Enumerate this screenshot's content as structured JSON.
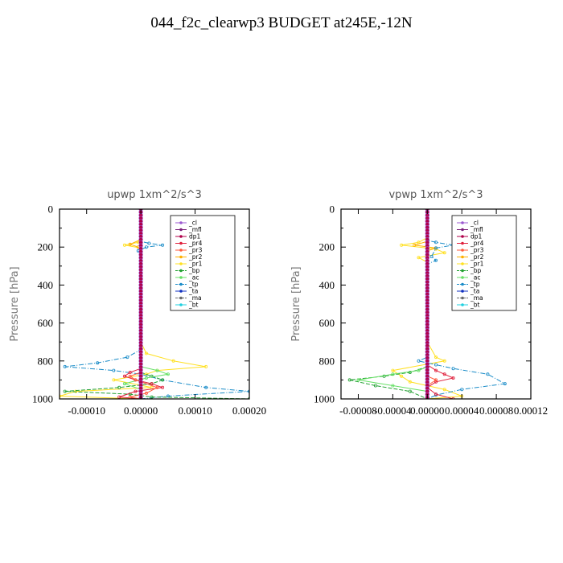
{
  "title": "044_f2c_clearwp3  BUDGET at245E,-12N",
  "colors": {
    "_cl": "#9b59d0",
    "_mfl": "#7a1f7a",
    "dp1": "#b0004a",
    "_pr4": "#e0203c",
    "_pr3": "#ff5a3c",
    "_pr2": "#ffb000",
    "_pr1": "#ffe020",
    "_bp": "#22a032",
    "_ac": "#66e066",
    "_tp": "#1a8cc8",
    "_ta": "#1030c0",
    "_ma": "#6a6a6a",
    "_bt": "#20d0e0"
  },
  "legend_entries": [
    "_cl",
    "_mfl",
    "dp1",
    "_pr4",
    "_pr3",
    "_pr2",
    "_pr1",
    "_bp",
    "_ac",
    "_tp",
    "_ta",
    "_ma",
    "_bt"
  ],
  "chart_data": [
    {
      "type": "line",
      "title": "upwp   1xm^2/s^3",
      "ylabel": "Pressure [hPa]",
      "xlim": [
        -0.00015,
        0.0002
      ],
      "ylim": [
        1000,
        0
      ],
      "xticks": [
        -0.0001,
        0.0,
        0.0001,
        0.0002
      ],
      "xtick_labels": [
        "-0.00010",
        "0.00000",
        "0.00010",
        "0.00020"
      ],
      "yticks": [
        0,
        200,
        400,
        600,
        800,
        1000
      ],
      "legend_position": "top-right",
      "series": [
        {
          "name": "_pr1",
          "points": [
            [
              0,
              0
            ],
            [
              0,
              150
            ],
            [
              -5e-06,
              175
            ],
            [
              -3e-05,
              190
            ],
            [
              0,
              205
            ],
            [
              0,
              700
            ],
            [
              1e-05,
              760
            ],
            [
              6e-05,
              800
            ],
            [
              0.00012,
              830
            ],
            [
              3e-05,
              850
            ],
            [
              1e-05,
              870
            ],
            [
              -5e-05,
              900
            ],
            [
              2e-05,
              940
            ],
            [
              -0.00012,
              960
            ],
            [
              -0.00015,
              985
            ],
            [
              0,
              1000
            ]
          ]
        },
        {
          "name": "_pr2",
          "points": [
            [
              0,
              0
            ],
            [
              0,
              160
            ],
            [
              -2e-05,
              185
            ],
            [
              -5e-06,
              200
            ],
            [
              0,
              220
            ],
            [
              0,
              1000
            ]
          ]
        },
        {
          "name": "_tp",
          "points": [
            [
              0,
              0
            ],
            [
              0,
              170
            ],
            [
              1.5e-05,
              180
            ],
            [
              4e-05,
              190
            ],
            [
              1e-05,
              200
            ],
            [
              -5e-06,
              220
            ],
            [
              0,
              240
            ],
            [
              0,
              740
            ],
            [
              -2.5e-05,
              780
            ],
            [
              -8e-05,
              810
            ],
            [
              -0.00014,
              830
            ],
            [
              -5e-05,
              850
            ],
            [
              0,
              870
            ],
            [
              4e-05,
              900
            ],
            [
              0.00012,
              940
            ],
            [
              0.0002,
              960
            ],
            [
              5e-05,
              985
            ],
            [
              0,
              1000
            ]
          ]
        },
        {
          "name": "_bp",
          "points": [
            [
              0,
              0
            ],
            [
              0,
              860
            ],
            [
              2e-05,
              880
            ],
            [
              4e-05,
              900
            ],
            [
              2e-05,
              920
            ],
            [
              -4e-05,
              940
            ],
            [
              -0.00014,
              960
            ],
            [
              -2e-05,
              975
            ],
            [
              2e-05,
              990
            ],
            [
              0.0002,
              1000
            ]
          ]
        },
        {
          "name": "_ac",
          "points": [
            [
              0,
              0
            ],
            [
              0,
              830
            ],
            [
              3e-05,
              850
            ],
            [
              5e-05,
              870
            ],
            [
              1e-05,
              890
            ],
            [
              -3e-05,
              920
            ],
            [
              0,
              950
            ],
            [
              0,
              1000
            ]
          ]
        },
        {
          "name": "_pr4",
          "points": [
            [
              0,
              0
            ],
            [
              0,
              840
            ],
            [
              -2e-05,
              860
            ],
            [
              -3e-05,
              880
            ],
            [
              -1e-05,
              900
            ],
            [
              2e-05,
              920
            ],
            [
              4e-05,
              940
            ],
            [
              -1e-05,
              960
            ],
            [
              -4e-05,
              990
            ],
            [
              0,
              1000
            ]
          ]
        },
        {
          "name": "_pr3",
          "points": [
            [
              0,
              0
            ],
            [
              0,
              860
            ],
            [
              -2e-05,
              880
            ],
            [
              -1e-05,
              900
            ],
            [
              3e-05,
              940
            ],
            [
              1e-05,
              970
            ],
            [
              -2e-05,
              990
            ],
            [
              0,
              1000
            ]
          ]
        },
        {
          "name": "_ta",
          "points": [
            [
              0,
              0
            ],
            [
              0,
              1000
            ]
          ]
        },
        {
          "name": "dp1",
          "points": [
            [
              0,
              0
            ],
            [
              0,
              1000
            ]
          ]
        },
        {
          "name": "_mfl",
          "points": [
            [
              0,
              0
            ],
            [
              0,
              1000
            ]
          ]
        },
        {
          "name": "_cl",
          "points": [
            [
              0,
              0
            ],
            [
              0,
              1000
            ]
          ]
        }
      ]
    },
    {
      "type": "line",
      "title": "vpwp   1xm^2/s^3",
      "ylabel": "Pressure [hPa]",
      "xlim": [
        -0.0001,
        0.00012
      ],
      "ylim": [
        1000,
        0
      ],
      "xticks": [
        -8e-05,
        -4e-05,
        0.0,
        4e-05,
        8e-05,
        0.00012
      ],
      "xtick_labels": [
        "-0.00008",
        "-0.00004",
        "0.00000",
        "0.00004",
        "0.00008",
        "0.00012"
      ],
      "yticks": [
        0,
        200,
        400,
        600,
        800,
        1000
      ],
      "legend_position": "top-right",
      "series": [
        {
          "name": "_pr1",
          "points": [
            [
              0,
              0
            ],
            [
              0,
              150
            ],
            [
              -1e-05,
              175
            ],
            [
              -3e-05,
              190
            ],
            [
              1e-05,
              210
            ],
            [
              2e-05,
              230
            ],
            [
              -1e-05,
              255
            ],
            [
              0,
              280
            ],
            [
              0,
              700
            ],
            [
              1e-05,
              780
            ],
            [
              2e-05,
              800
            ],
            [
              -4e-05,
              850
            ],
            [
              -3e-05,
              880
            ],
            [
              -2e-05,
              910
            ],
            [
              2e-05,
              950
            ],
            [
              4e-05,
              985
            ],
            [
              0,
              1000
            ]
          ]
        },
        {
          "name": "_pr2",
          "points": [
            [
              0,
              0
            ],
            [
              0,
              170
            ],
            [
              -1.5e-05,
              190
            ],
            [
              1e-05,
              205
            ],
            [
              0,
              220
            ],
            [
              0,
              1000
            ]
          ]
        },
        {
          "name": "_tp",
          "points": [
            [
              0,
              0
            ],
            [
              0,
              165
            ],
            [
              1e-05,
              175
            ],
            [
              3e-05,
              190
            ],
            [
              1e-05,
              205
            ],
            [
              5e-06,
              250
            ],
            [
              1e-05,
              270
            ],
            [
              0,
              290
            ],
            [
              0,
              780
            ],
            [
              -1e-05,
              800
            ],
            [
              1e-05,
              820
            ],
            [
              3e-05,
              840
            ],
            [
              7e-05,
              870
            ],
            [
              9e-05,
              920
            ],
            [
              4e-05,
              950
            ],
            [
              1e-05,
              980
            ],
            [
              0,
              1000
            ]
          ]
        },
        {
          "name": "_bp",
          "points": [
            [
              0,
              0
            ],
            [
              0,
              830
            ],
            [
              -2e-05,
              860
            ],
            [
              -5e-05,
              880
            ],
            [
              -9e-05,
              900
            ],
            [
              -6e-05,
              930
            ],
            [
              -2e-05,
              960
            ],
            [
              0,
              1000
            ]
          ]
        },
        {
          "name": "_ac",
          "points": [
            [
              0,
              0
            ],
            [
              0,
              830
            ],
            [
              -1e-05,
              850
            ],
            [
              -4e-05,
              870
            ],
            [
              -8e-05,
              900
            ],
            [
              -4e-05,
              930
            ],
            [
              0,
              960
            ],
            [
              0,
              1000
            ]
          ]
        },
        {
          "name": "_pr4",
          "points": [
            [
              0,
              0
            ],
            [
              0,
              820
            ],
            [
              1e-05,
              850
            ],
            [
              2e-05,
              870
            ],
            [
              3e-05,
              890
            ],
            [
              1e-05,
              910
            ],
            [
              0,
              940
            ],
            [
              1e-05,
              975
            ],
            [
              3e-05,
              1000
            ]
          ]
        },
        {
          "name": "_pr3",
          "points": [
            [
              0,
              0
            ],
            [
              0,
              880
            ],
            [
              1e-05,
              900
            ],
            [
              0,
              930
            ],
            [
              0,
              1000
            ]
          ]
        },
        {
          "name": "_ta",
          "points": [
            [
              0,
              0
            ],
            [
              0,
              1000
            ]
          ]
        },
        {
          "name": "dp1",
          "points": [
            [
              0,
              0
            ],
            [
              0,
              1000
            ]
          ]
        },
        {
          "name": "_mfl",
          "points": [
            [
              0,
              0
            ],
            [
              0,
              1000
            ]
          ]
        },
        {
          "name": "_cl",
          "points": [
            [
              0,
              0
            ],
            [
              0,
              1000
            ]
          ]
        }
      ]
    }
  ]
}
